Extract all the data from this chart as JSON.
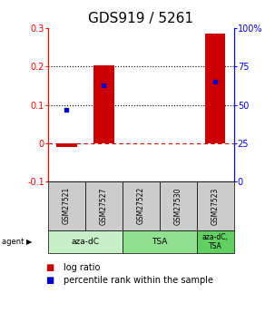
{
  "title": "GDS919 / 5261",
  "samples": [
    "GSM27521",
    "GSM27527",
    "GSM27522",
    "GSM27530",
    "GSM27523"
  ],
  "log_ratios": [
    -0.01,
    0.202,
    0.0,
    0.0,
    0.287
  ],
  "percentile_ranks_pct": [
    46.5,
    63.0,
    0.0,
    0.0,
    65.0
  ],
  "agent_groups": [
    {
      "label": "aza-dC",
      "span": [
        0,
        2
      ],
      "color": "#c8f0c8"
    },
    {
      "label": "TSA",
      "span": [
        2,
        4
      ],
      "color": "#90e090"
    },
    {
      "label": "aza-dC,\nTSA",
      "span": [
        4,
        5
      ],
      "color": "#60d060"
    }
  ],
  "ylim_left": [
    -0.1,
    0.3
  ],
  "ylim_right": [
    0,
    100
  ],
  "yticks_left": [
    -0.1,
    0.0,
    0.1,
    0.2,
    0.3
  ],
  "yticks_left_labels": [
    "-0.1",
    "0",
    "0.1",
    "0.2",
    "0.3"
  ],
  "yticks_right": [
    0,
    25,
    50,
    75,
    100
  ],
  "yticks_right_labels": [
    "0",
    "25",
    "50",
    "75",
    "100%"
  ],
  "hlines_dotted": [
    0.1,
    0.2
  ],
  "hline_dashed": 0.0,
  "bar_color": "#cc0000",
  "dot_color": "#0000cc",
  "zero_line_color": "#cc0000",
  "sample_box_color": "#cccccc",
  "title_fontsize": 11,
  "axis_fontsize": 7,
  "legend_fontsize": 7,
  "bar_width": 0.55
}
